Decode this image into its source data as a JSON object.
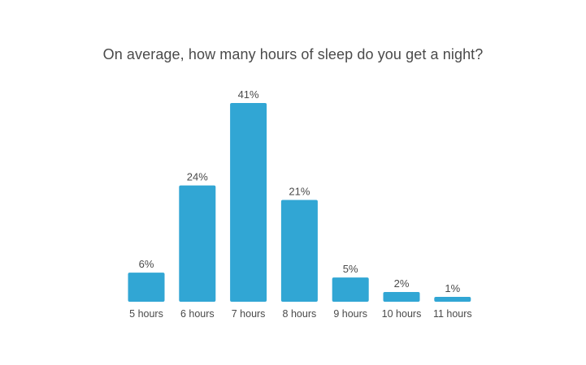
{
  "chart_data": {
    "type": "bar",
    "title": "On average, how many hours of sleep do you get a night?",
    "categories": [
      "5 hours",
      "6 hours",
      "7 hours",
      "8 hours",
      "9 hours",
      "10 hours",
      "11 hours"
    ],
    "values": [
      6,
      24,
      41,
      21,
      5,
      2,
      1
    ],
    "value_labels": [
      "6%",
      "24%",
      "41%",
      "21%",
      "5%",
      "2%",
      "1%"
    ],
    "unit": "%",
    "ylim": [
      0,
      41
    ],
    "grid": false,
    "legend": "none",
    "bar_color": "#31a6d4",
    "text_color": "#4a4a4a"
  }
}
